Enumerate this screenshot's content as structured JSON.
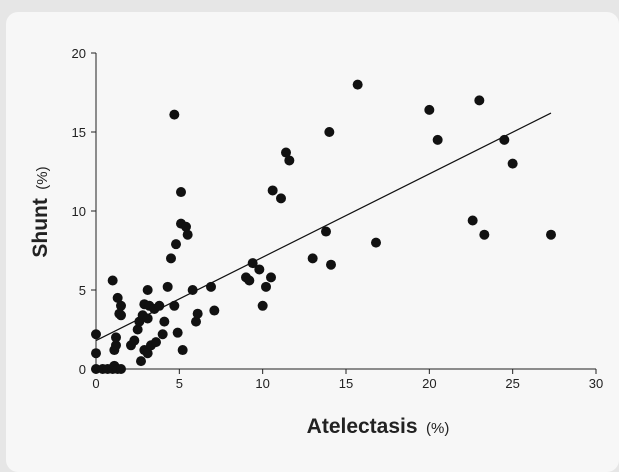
{
  "chart_data": {
    "type": "scatter",
    "xlabel": "Atelectasis",
    "xlabel_unit": "(%)",
    "ylabel": "Shunt",
    "ylabel_unit": "(%)",
    "xlim": [
      0,
      30
    ],
    "ylim": [
      0,
      20
    ],
    "xticks": [
      "0",
      "5",
      "10",
      "15",
      "20",
      "25",
      "30"
    ],
    "yticks": [
      "0",
      "5",
      "10",
      "15",
      "20"
    ],
    "grid": false,
    "point_color": "#111111",
    "line_color": "#111111",
    "trendline": {
      "x": [
        0,
        27.3
      ],
      "y": [
        1.8,
        16.2
      ]
    },
    "points": [
      [
        0,
        0
      ],
      [
        0,
        1
      ],
      [
        0,
        2.2
      ],
      [
        0.4,
        0
      ],
      [
        0.7,
        0
      ],
      [
        1,
        0
      ],
      [
        1.1,
        0.2
      ],
      [
        1.3,
        0
      ],
      [
        1.5,
        0
      ],
      [
        1.1,
        1.2
      ],
      [
        1.2,
        1.5
      ],
      [
        1.2,
        2
      ],
      [
        1,
        5.6
      ],
      [
        1.3,
        4.5
      ],
      [
        1.5,
        4
      ],
      [
        1.4,
        3.5
      ],
      [
        1.5,
        3.4
      ],
      [
        2.1,
        1.5
      ],
      [
        2.3,
        1.8
      ],
      [
        2.5,
        2.5
      ],
      [
        2.6,
        3
      ],
      [
        2.8,
        3.4
      ],
      [
        2.9,
        4.1
      ],
      [
        2.7,
        0.5
      ],
      [
        2.9,
        1.2
      ],
      [
        3.1,
        1
      ],
      [
        3.3,
        1.5
      ],
      [
        3.1,
        3.2
      ],
      [
        3.2,
        4
      ],
      [
        3.1,
        5
      ],
      [
        3.5,
        3.8
      ],
      [
        3.6,
        1.7
      ],
      [
        3.8,
        4
      ],
      [
        4,
        2.2
      ],
      [
        4.1,
        3
      ],
      [
        4.3,
        5.2
      ],
      [
        4.5,
        7
      ],
      [
        4.7,
        4
      ],
      [
        4.8,
        7.9
      ],
      [
        4.7,
        16.1
      ],
      [
        4.9,
        2.3
      ],
      [
        5.1,
        9.2
      ],
      [
        5.1,
        11.2
      ],
      [
        5.2,
        1.2
      ],
      [
        5.4,
        9
      ],
      [
        5.5,
        8.5
      ],
      [
        5.8,
        5
      ],
      [
        6,
        3
      ],
      [
        6.1,
        3.5
      ],
      [
        6.9,
        5.2
      ],
      [
        7.1,
        3.7
      ],
      [
        9,
        5.8
      ],
      [
        9.2,
        5.6
      ],
      [
        9.4,
        6.7
      ],
      [
        9.8,
        6.3
      ],
      [
        10,
        4
      ],
      [
        10.2,
        5.2
      ],
      [
        10.5,
        5.8
      ],
      [
        10.6,
        11.3
      ],
      [
        11.1,
        10.8
      ],
      [
        11.4,
        13.7
      ],
      [
        11.6,
        13.2
      ],
      [
        13,
        7
      ],
      [
        13.8,
        8.7
      ],
      [
        14,
        15
      ],
      [
        14.1,
        6.6
      ],
      [
        15.7,
        18
      ],
      [
        16.8,
        8
      ],
      [
        20,
        16.4
      ],
      [
        20.5,
        14.5
      ],
      [
        22.6,
        9.4
      ],
      [
        23,
        17
      ],
      [
        23.3,
        8.5
      ],
      [
        24.5,
        14.5
      ],
      [
        25,
        13
      ],
      [
        27.3,
        8.5
      ]
    ]
  }
}
